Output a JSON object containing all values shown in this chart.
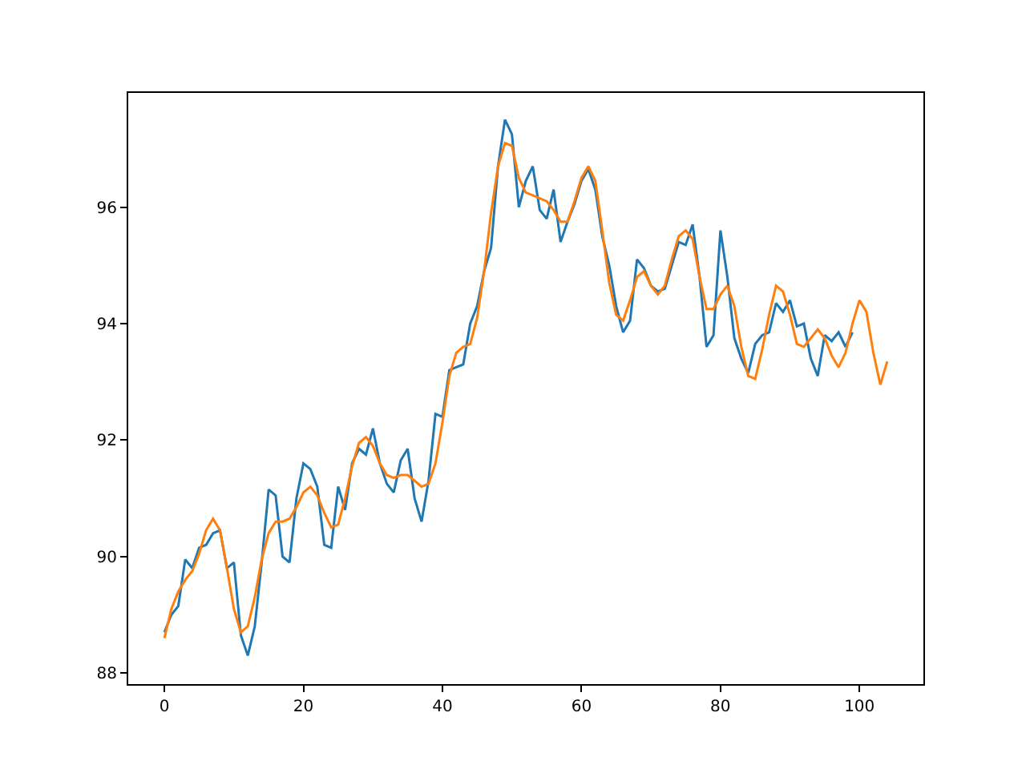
{
  "chart_data": {
    "type": "line",
    "xlim": [
      -5.2,
      109.2
    ],
    "ylim": [
      87.81,
      97.96
    ],
    "xticks": [
      0,
      20,
      40,
      60,
      80,
      100
    ],
    "yticks": [
      88,
      90,
      92,
      94,
      96
    ],
    "grid": false,
    "x": [
      0,
      1,
      2,
      3,
      4,
      5,
      6,
      7,
      8,
      9,
      10,
      11,
      12,
      13,
      14,
      15,
      16,
      17,
      18,
      19,
      20,
      21,
      22,
      23,
      24,
      25,
      26,
      27,
      28,
      29,
      30,
      31,
      32,
      33,
      34,
      35,
      36,
      37,
      38,
      39,
      40,
      41,
      42,
      43,
      44,
      45,
      46,
      47,
      48,
      49,
      50,
      51,
      52,
      53,
      54,
      55,
      56,
      57,
      58,
      59,
      60,
      61,
      62,
      63,
      64,
      65,
      66,
      67,
      68,
      69,
      70,
      71,
      72,
      73,
      74,
      75,
      76,
      77,
      78,
      79,
      80,
      81,
      82,
      83,
      84,
      85,
      86,
      87,
      88,
      89,
      90,
      91,
      92,
      93,
      94,
      95,
      96,
      97,
      98,
      99,
      100,
      101,
      102,
      103,
      104
    ],
    "series": [
      {
        "color": "#1f77b4",
        "x": [
          0,
          1,
          2,
          3,
          4,
          5,
          6,
          7,
          8,
          9,
          10,
          11,
          12,
          13,
          14,
          15,
          16,
          17,
          18,
          19,
          20,
          21,
          22,
          23,
          24,
          25,
          26,
          27,
          28,
          29,
          30,
          31,
          32,
          33,
          34,
          35,
          36,
          37,
          38,
          39,
          40,
          41,
          42,
          43,
          44,
          45,
          46,
          47,
          48,
          49,
          50,
          51,
          52,
          53,
          54,
          55,
          56,
          57,
          58,
          59,
          60,
          61,
          62,
          63,
          64,
          65,
          66,
          67,
          68,
          69,
          70,
          71,
          72,
          73,
          74,
          75,
          76,
          77,
          78,
          79,
          80,
          81,
          82,
          83,
          84,
          85,
          86,
          87,
          88,
          89,
          90,
          91,
          92,
          93,
          94,
          95,
          96,
          97,
          98,
          99
        ],
        "values": [
          88.7,
          89.0,
          89.15,
          89.95,
          89.8,
          90.15,
          90.2,
          90.4,
          90.45,
          89.8,
          89.9,
          88.65,
          88.3,
          88.8,
          89.9,
          91.15,
          91.05,
          90.0,
          89.9,
          91.0,
          91.6,
          91.5,
          91.2,
          90.2,
          90.15,
          91.2,
          90.8,
          91.6,
          91.85,
          91.75,
          92.2,
          91.6,
          91.25,
          91.1,
          91.65,
          91.85,
          91.0,
          90.6,
          91.3,
          92.45,
          92.4,
          93.2,
          93.25,
          93.3,
          94.0,
          94.3,
          94.9,
          95.3,
          96.7,
          97.5,
          97.25,
          96.0,
          96.45,
          96.7,
          95.95,
          95.8,
          96.3,
          95.4,
          95.75,
          96.05,
          96.45,
          96.65,
          96.3,
          95.5,
          95.0,
          94.3,
          93.85,
          94.05,
          95.1,
          94.95,
          94.65,
          94.55,
          94.6,
          95.0,
          95.4,
          95.35,
          95.7,
          94.8,
          93.6,
          93.8,
          95.6,
          94.8,
          93.75,
          93.4,
          93.15,
          93.65,
          93.8,
          93.85,
          94.35,
          94.2,
          94.4,
          93.95,
          94.0,
          93.4,
          93.1,
          93.8,
          93.7,
          93.85,
          93.6,
          93.85
        ]
      },
      {
        "color": "#ff7f0e",
        "values": [
          88.6,
          89.1,
          89.4,
          89.6,
          89.75,
          90.05,
          90.45,
          90.65,
          90.45,
          89.8,
          89.1,
          88.7,
          88.8,
          89.3,
          89.95,
          90.4,
          90.6,
          90.6,
          90.65,
          90.85,
          91.1,
          91.2,
          91.05,
          90.75,
          90.5,
          90.55,
          91.0,
          91.55,
          91.95,
          92.05,
          91.9,
          91.6,
          91.4,
          91.35,
          91.4,
          91.4,
          91.3,
          91.2,
          91.25,
          91.6,
          92.3,
          93.1,
          93.5,
          93.6,
          93.65,
          94.1,
          94.9,
          95.9,
          96.7,
          97.1,
          97.05,
          96.5,
          96.25,
          96.2,
          96.15,
          96.1,
          95.95,
          95.75,
          95.75,
          96.1,
          96.5,
          96.7,
          96.45,
          95.6,
          94.7,
          94.15,
          94.05,
          94.4,
          94.8,
          94.9,
          94.65,
          94.5,
          94.65,
          95.1,
          95.5,
          95.6,
          95.45,
          94.8,
          94.25,
          94.25,
          94.5,
          94.65,
          94.3,
          93.6,
          93.1,
          93.05,
          93.55,
          94.15,
          94.65,
          94.55,
          94.15,
          93.65,
          93.6,
          93.75,
          93.9,
          93.75,
          93.45,
          93.25,
          93.5,
          94.0,
          94.4,
          94.2,
          93.5,
          92.95,
          93.35
        ]
      }
    ]
  }
}
